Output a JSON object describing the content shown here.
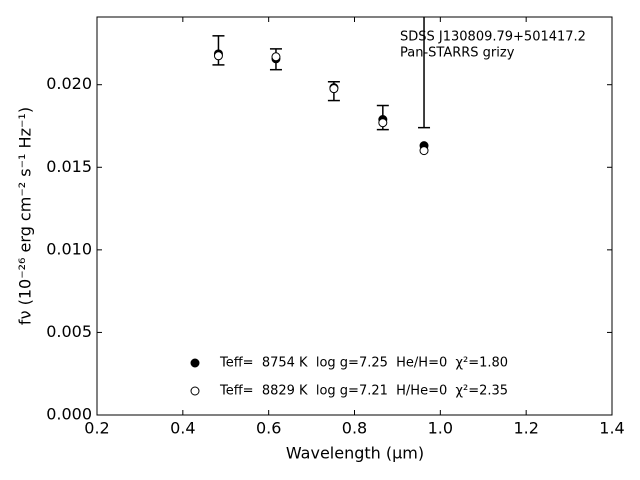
{
  "chart_data": {
    "type": "scatter",
    "title": "SDSS J130809.79+501417.2",
    "subtitle": "Pan-STARRS grizy",
    "xlabel": "Wavelength (μm)",
    "ylabel": "fν (10⁻²⁶ erg cm⁻² s⁻¹ Hz⁻¹)",
    "x": [
      0.483,
      0.617,
      0.752,
      0.866,
      0.962
    ],
    "series": [
      {
        "marker": "errorbar",
        "color": "#000000",
        "values": [
          0.02208,
          0.02154,
          0.01961,
          0.01801,
          0.021
        ],
        "errors": [
          0.00088,
          0.00063,
          0.00057,
          0.00073,
          0.0036
        ]
      },
      {
        "name": "Teff=  8754 K  log g=7.25  He/H=0  χ²=1.80",
        "marker": "filled",
        "color": "#000000",
        "values": [
          0.02187,
          0.02157,
          0.01982,
          0.01789,
          0.01631
        ]
      },
      {
        "name": "Teff=  8829 K  log g=7.21  H/He=0  χ²=2.35",
        "marker": "open",
        "color": "#000000",
        "values": [
          0.02175,
          0.02169,
          0.01976,
          0.0177,
          0.01601
        ]
      }
    ],
    "xlim": [
      0.2,
      1.4
    ],
    "ylim": [
      0,
      0.0241
    ],
    "xticks": [
      0.2,
      0.4,
      0.6,
      0.8,
      {
        "value": 1,
        "label": "1.0"
      },
      1.2,
      1.4
    ],
    "yticks": [
      {
        "value": 0,
        "label": "0.000"
      },
      {
        "value": 0.005,
        "label": "0.005"
      },
      {
        "value": 0.01,
        "label": "0.010"
      },
      {
        "value": 0.015,
        "label": "0.015"
      },
      {
        "value": 0.02,
        "label": "0.020"
      }
    ],
    "legend": "lower center",
    "grid": false
  }
}
